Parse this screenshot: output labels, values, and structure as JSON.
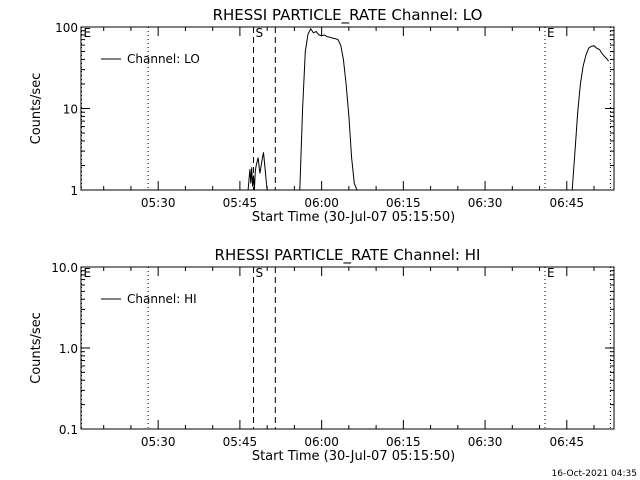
{
  "footer": {
    "timestamp": "16-Oct-2021 04:35"
  },
  "chart_data": [
    {
      "type": "line",
      "title": "RHESSI PARTICLE_RATE Channel: LO",
      "xlabel": "Start Time (30-Jul-07 05:15:50)",
      "ylabel": "Counts/sec",
      "x_unit": "time (HH:MM)",
      "xlim": [
        "05:15:50",
        "06:53:40"
      ],
      "y_scale": "log",
      "ylim": [
        1,
        100
      ],
      "x_ticks": [
        "05:30",
        "05:45",
        "06:00",
        "06:15",
        "06:30",
        "06:45"
      ],
      "y_ticks": [
        "1",
        "10",
        "100"
      ],
      "legend": {
        "label": "Channel: LO",
        "position": "top-left"
      },
      "markers": [
        {
          "label": "E",
          "time": "05:15:50",
          "style": "dotted"
        },
        {
          "label": "",
          "time": "05:28:10",
          "style": "dotted"
        },
        {
          "label": "S",
          "time": "05:47:30",
          "style": "dashed"
        },
        {
          "label": "",
          "time": "05:51:30",
          "style": "dashed"
        },
        {
          "label": "E",
          "time": "06:41:00",
          "style": "dotted"
        },
        {
          "label": "",
          "time": "06:53:00",
          "style": "dotted"
        }
      ],
      "series": [
        {
          "name": "Channel: LO",
          "segments": [
            {
              "x": [
                "05:46:30",
                "05:46:50",
                "05:47:00",
                "05:47:10",
                "05:47:20",
                "05:47:30",
                "05:47:40",
                "05:47:50",
                "05:48:00",
                "05:48:20",
                "05:48:40",
                "05:49:00",
                "05:49:20",
                "05:49:40",
                "05:50:00"
              ],
              "y": [
                1.0,
                1.8,
                1.2,
                1.9,
                1.1,
                1.5,
                1.0,
                1.7,
                2.0,
                2.5,
                1.6,
                2.2,
                2.9,
                1.7,
                1.0
              ]
            },
            {
              "x": [
                "05:56:00",
                "05:56:30",
                "05:57:00",
                "05:57:30",
                "05:58:00",
                "05:58:30",
                "05:59:00",
                "05:59:30",
                "06:00:00",
                "06:00:30",
                "06:01:00",
                "06:01:30",
                "06:02:00",
                "06:02:30",
                "06:03:00",
                "06:03:30",
                "06:04:00",
                "06:04:30",
                "06:05:00",
                "06:05:30",
                "06:06:00",
                "06:06:30"
              ],
              "y": [
                1.0,
                10,
                50,
                82,
                95,
                85,
                88,
                80,
                78,
                80,
                76,
                75,
                73,
                72,
                70,
                60,
                40,
                20,
                8,
                2.5,
                1.2,
                1.0
              ]
            },
            {
              "x": [
                "06:46:00",
                "06:46:30",
                "06:47:00",
                "06:47:30",
                "06:48:00",
                "06:48:30",
                "06:49:00",
                "06:49:30",
                "06:50:00",
                "06:50:30",
                "06:51:00",
                "06:51:30",
                "06:52:00",
                "06:52:20",
                "06:52:40"
              ],
              "y": [
                1.0,
                3,
                9,
                20,
                33,
                45,
                55,
                58,
                59,
                55,
                53,
                47,
                43,
                41,
                38
              ]
            }
          ]
        }
      ]
    },
    {
      "type": "line",
      "title": "RHESSI PARTICLE_RATE Channel: HI",
      "xlabel": "Start Time (30-Jul-07 05:15:50)",
      "ylabel": "Counts/sec",
      "x_unit": "time (HH:MM)",
      "xlim": [
        "05:15:50",
        "06:53:40"
      ],
      "y_scale": "log",
      "ylim": [
        0.1,
        10
      ],
      "x_ticks": [
        "05:30",
        "05:45",
        "06:00",
        "06:15",
        "06:30",
        "06:45"
      ],
      "y_ticks": [
        "0.1",
        "1.0",
        "10.0"
      ],
      "legend": {
        "label": "Channel: HI",
        "position": "top-left"
      },
      "markers": [
        {
          "label": "E",
          "time": "05:15:50",
          "style": "dotted"
        },
        {
          "label": "",
          "time": "05:28:10",
          "style": "dotted"
        },
        {
          "label": "S",
          "time": "05:47:30",
          "style": "dashed"
        },
        {
          "label": "",
          "time": "05:51:30",
          "style": "dashed"
        },
        {
          "label": "E",
          "time": "06:41:00",
          "style": "dotted"
        },
        {
          "label": "",
          "time": "06:53:00",
          "style": "dotted"
        }
      ],
      "series": [
        {
          "name": "Channel: HI",
          "segments": []
        }
      ]
    }
  ]
}
